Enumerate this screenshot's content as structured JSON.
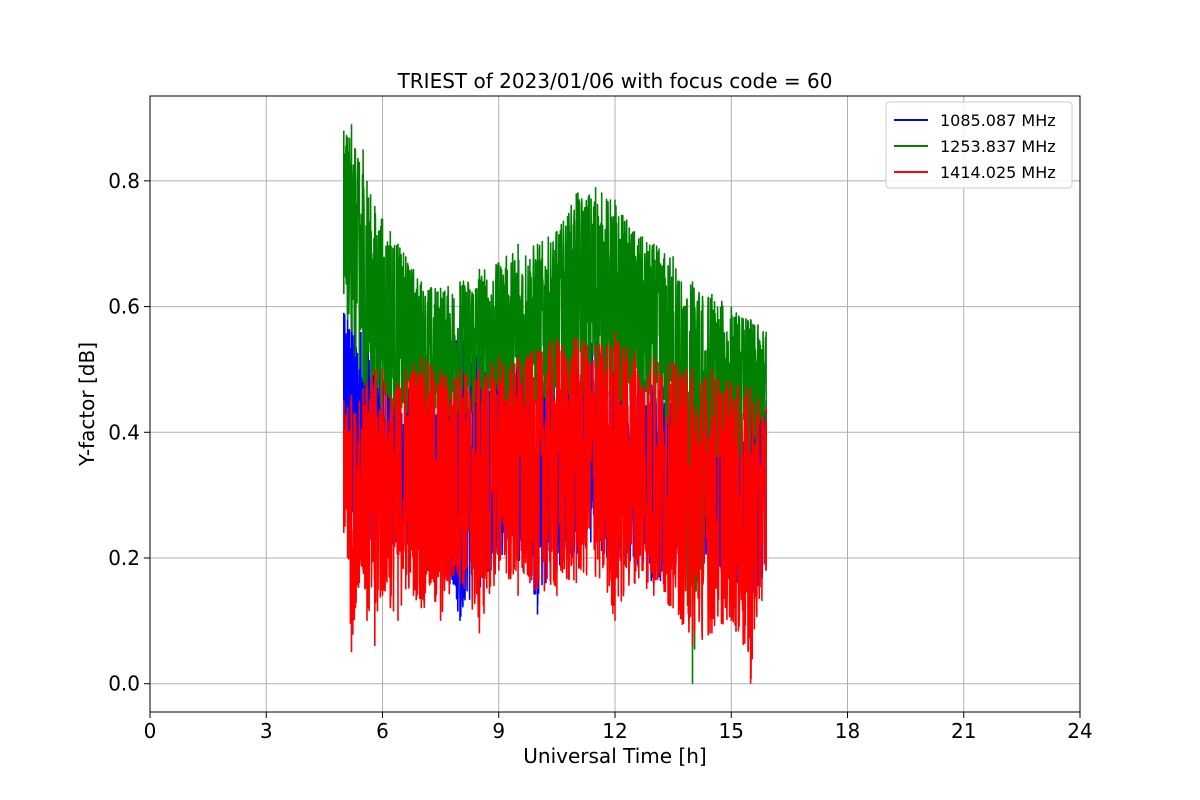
{
  "chart_data": {
    "type": "line",
    "title": "TRIEST of 2023/01/06 with focus code = 60",
    "xlabel": "Universal Time [h]",
    "ylabel": "Y-factor [dB]",
    "xlim": [
      0,
      24
    ],
    "ylim": [
      -0.045,
      0.935
    ],
    "xticks": [
      0,
      3,
      6,
      9,
      12,
      15,
      18,
      21,
      24
    ],
    "yticks": [
      0.0,
      0.2,
      0.4,
      0.6,
      0.8
    ],
    "ytick_labels": [
      "0.0",
      "0.2",
      "0.4",
      "0.6",
      "0.8"
    ],
    "grid": true,
    "legend_position": "top-right",
    "series": [
      {
        "name": "1085.087 MHz",
        "color": "#0000ff",
        "x": [
          5.0,
          5.1,
          5.2,
          5.3,
          5.4,
          5.5,
          5.6,
          5.8,
          6.0,
          6.2,
          6.4,
          6.6,
          6.8,
          7.0,
          7.5,
          8.0,
          8.5,
          9.0,
          9.5,
          10.0,
          10.5,
          11.0,
          11.5,
          12.0,
          12.5,
          13.0,
          13.5,
          14.0,
          14.5,
          15.0,
          15.5,
          15.9
        ],
        "min": [
          0.26,
          0.25,
          0.24,
          0.22,
          0.21,
          0.22,
          0.23,
          0.22,
          0.21,
          0.2,
          0.21,
          0.22,
          0.2,
          0.18,
          0.2,
          0.1,
          0.15,
          0.2,
          0.2,
          0.11,
          0.18,
          0.2,
          0.22,
          0.18,
          0.19,
          0.16,
          0.17,
          0.18,
          0.2,
          0.15,
          0.12,
          0.18
        ],
        "max": [
          0.59,
          0.58,
          0.62,
          0.57,
          0.56,
          0.59,
          0.54,
          0.52,
          0.5,
          0.49,
          0.48,
          0.47,
          0.48,
          0.47,
          0.5,
          0.59,
          0.52,
          0.5,
          0.52,
          0.5,
          0.52,
          0.53,
          0.55,
          0.52,
          0.5,
          0.49,
          0.47,
          0.46,
          0.45,
          0.46,
          0.47,
          0.45
        ]
      },
      {
        "name": "1253.837 MHz",
        "color": "#008000",
        "x": [
          5.0,
          5.1,
          5.2,
          5.3,
          5.4,
          5.5,
          5.6,
          5.8,
          6.0,
          6.2,
          6.4,
          6.6,
          6.8,
          7.0,
          7.5,
          8.0,
          8.5,
          9.0,
          9.5,
          10.0,
          10.5,
          11.0,
          11.5,
          12.0,
          12.5,
          13.0,
          13.5,
          14.0,
          14.5,
          15.0,
          15.5,
          15.9
        ],
        "min": [
          0.62,
          0.58,
          0.56,
          0.52,
          0.5,
          0.48,
          0.46,
          0.45,
          0.44,
          0.43,
          0.42,
          0.41,
          0.4,
          0.4,
          0.42,
          0.43,
          0.42,
          0.44,
          0.42,
          0.43,
          0.44,
          0.45,
          0.44,
          0.43,
          0.42,
          0.4,
          0.38,
          0.0,
          0.36,
          0.35,
          0.35,
          0.36
        ],
        "max": [
          0.88,
          0.87,
          0.89,
          0.85,
          0.83,
          0.85,
          0.8,
          0.76,
          0.74,
          0.72,
          0.7,
          0.68,
          0.66,
          0.64,
          0.63,
          0.64,
          0.66,
          0.67,
          0.7,
          0.7,
          0.72,
          0.78,
          0.79,
          0.77,
          0.72,
          0.7,
          0.68,
          0.64,
          0.62,
          0.6,
          0.58,
          0.56
        ]
      },
      {
        "name": "1414.025 MHz",
        "color": "#ff0000",
        "x": [
          5.0,
          5.1,
          5.2,
          5.3,
          5.4,
          5.5,
          5.6,
          5.8,
          6.0,
          6.2,
          6.4,
          6.6,
          6.8,
          7.0,
          7.5,
          8.0,
          8.5,
          9.0,
          9.5,
          10.0,
          10.5,
          11.0,
          11.5,
          12.0,
          12.5,
          13.0,
          13.5,
          14.0,
          14.5,
          15.0,
          15.5,
          15.9
        ],
        "min": [
          0.24,
          0.2,
          0.05,
          0.12,
          0.16,
          0.18,
          0.1,
          0.06,
          0.14,
          0.12,
          0.1,
          0.15,
          0.14,
          0.12,
          0.1,
          0.16,
          0.08,
          0.18,
          0.14,
          0.15,
          0.14,
          0.16,
          0.17,
          0.1,
          0.16,
          0.14,
          0.12,
          0.06,
          0.08,
          0.1,
          0.0,
          0.18
        ],
        "max": [
          0.45,
          0.44,
          0.46,
          0.43,
          0.45,
          0.47,
          0.48,
          0.5,
          0.5,
          0.46,
          0.48,
          0.5,
          0.51,
          0.52,
          0.5,
          0.5,
          0.5,
          0.52,
          0.52,
          0.53,
          0.55,
          0.55,
          0.54,
          0.56,
          0.53,
          0.52,
          0.51,
          0.5,
          0.5,
          0.48,
          0.47,
          0.44
        ]
      }
    ]
  }
}
